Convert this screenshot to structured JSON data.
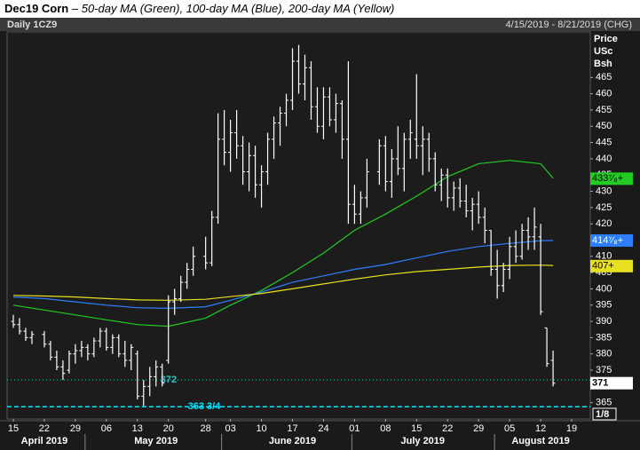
{
  "chart_data": {
    "type": "ohlc",
    "title": "Dec19 Corn",
    "subtitle": "– 50-day MA (Green), 100-day MA (Blue), 200-day MA (Yellow)",
    "symbol": "Daily 1CZ9",
    "date_range": "4/15/2019 - 8/21/2019 (CHG)",
    "unit_labels": [
      "Price",
      "USc",
      "Bsh"
    ],
    "fraction": "1/8",
    "bar_color": "#ffffff",
    "ylim": [
      360,
      479
    ],
    "yticks": [
      365,
      370,
      375,
      380,
      385,
      390,
      395,
      400,
      405,
      410,
      415,
      420,
      425,
      430,
      435,
      440,
      445,
      450,
      455,
      460,
      465
    ],
    "xlim": [
      "2019-04-12",
      "2019-08-22"
    ],
    "xticks": [
      {
        "value": "2019-04-15",
        "label": "15"
      },
      {
        "value": "2019-04-22",
        "label": "22"
      },
      {
        "value": "2019-04-29",
        "label": "29"
      },
      {
        "value": "2019-05-06",
        "label": "06"
      },
      {
        "value": "2019-05-13",
        "label": "13"
      },
      {
        "value": "2019-05-20",
        "label": "20"
      },
      {
        "value": "2019-05-28",
        "label": "28"
      },
      {
        "value": "2019-06-03",
        "label": "03"
      },
      {
        "value": "2019-06-10",
        "label": "10"
      },
      {
        "value": "2019-06-17",
        "label": "17"
      },
      {
        "value": "2019-06-24",
        "label": "24"
      },
      {
        "value": "2019-07-01",
        "label": "01"
      },
      {
        "value": "2019-07-08",
        "label": "08"
      },
      {
        "value": "2019-07-15",
        "label": "15"
      },
      {
        "value": "2019-07-22",
        "label": "22"
      },
      {
        "value": "2019-07-29",
        "label": "29"
      },
      {
        "value": "2019-08-05",
        "label": "05"
      },
      {
        "value": "2019-08-12",
        "label": "12"
      },
      {
        "value": "2019-08-19",
        "label": "19"
      }
    ],
    "month_ticks": [
      {
        "value": "2019-04-22",
        "label": "April 2019"
      },
      {
        "value": "2019-05-16",
        "label": "May 2019"
      },
      {
        "value": "2019-06-17",
        "label": "June 2019"
      },
      {
        "value": "2019-07-16",
        "label": "July 2019"
      },
      {
        "value": "2019-08-12",
        "label": "August 2019"
      }
    ],
    "bars": {
      "x": [
        "2019-04-15",
        "2019-04-16",
        "2019-04-17",
        "2019-04-18",
        "2019-04-22",
        "2019-04-23",
        "2019-04-24",
        "2019-04-25",
        "2019-04-26",
        "2019-04-29",
        "2019-04-30",
        "2019-05-01",
        "2019-05-02",
        "2019-05-03",
        "2019-05-06",
        "2019-05-07",
        "2019-05-08",
        "2019-05-09",
        "2019-05-10",
        "2019-05-13",
        "2019-05-14",
        "2019-05-15",
        "2019-05-16",
        "2019-05-17",
        "2019-05-20",
        "2019-05-21",
        "2019-05-22",
        "2019-05-23",
        "2019-05-24",
        "2019-05-28",
        "2019-05-29",
        "2019-05-30",
        "2019-05-31",
        "2019-06-03",
        "2019-06-04",
        "2019-06-05",
        "2019-06-06",
        "2019-06-07",
        "2019-06-10",
        "2019-06-11",
        "2019-06-12",
        "2019-06-13",
        "2019-06-14",
        "2019-06-17",
        "2019-06-18",
        "2019-06-19",
        "2019-06-20",
        "2019-06-21",
        "2019-06-24",
        "2019-06-25",
        "2019-06-26",
        "2019-06-27",
        "2019-06-28",
        "2019-07-01",
        "2019-07-02",
        "2019-07-03",
        "2019-07-05",
        "2019-07-08",
        "2019-07-09",
        "2019-07-10",
        "2019-07-11",
        "2019-07-12",
        "2019-07-15",
        "2019-07-16",
        "2019-07-17",
        "2019-07-18",
        "2019-07-19",
        "2019-07-22",
        "2019-07-23",
        "2019-07-24",
        "2019-07-25",
        "2019-07-26",
        "2019-07-29",
        "2019-07-30",
        "2019-07-31",
        "2019-08-01",
        "2019-08-02",
        "2019-08-05",
        "2019-08-06",
        "2019-08-07",
        "2019-08-08",
        "2019-08-09",
        "2019-08-12",
        "2019-08-13",
        "2019-08-14"
      ],
      "open": [
        390,
        389,
        387,
        385,
        386,
        383,
        379,
        376,
        375,
        380,
        381,
        382,
        380,
        384,
        387,
        382,
        385,
        380,
        378,
        380,
        367,
        370,
        373,
        376,
        378,
        396,
        397,
        402,
        406,
        410,
        408,
        422,
        446,
        442,
        448,
        444,
        436,
        441,
        432,
        436,
        446,
        451,
        454,
        458,
        470,
        463,
        468,
        456,
        450,
        459,
        452,
        457,
        446,
        426,
        423,
        428,
        436,
        444,
        433,
        440,
        437,
        446,
        446,
        444,
        446,
        440,
        432,
        435,
        428,
        431,
        427,
        424,
        426,
        422,
        418,
        406,
        401,
        406,
        413,
        410,
        418,
        416,
        416,
        388,
        378
      ],
      "high": [
        392,
        391,
        388,
        387,
        387,
        384,
        381,
        378,
        381,
        383,
        384,
        383,
        385,
        388,
        388,
        386,
        386,
        384,
        383,
        381,
        372,
        376,
        378,
        377,
        398,
        400,
        404,
        408,
        413,
        416,
        424,
        454,
        455,
        452,
        455,
        447,
        445,
        444,
        438,
        448,
        453,
        456,
        460,
        474,
        475,
        472,
        470,
        462,
        462,
        462,
        460,
        458,
        470,
        432,
        430,
        440,
        446,
        447,
        443,
        450,
        448,
        452,
        466,
        450,
        448,
        442,
        437,
        437,
        433,
        434,
        432,
        428,
        430,
        425,
        418,
        412,
        408,
        416,
        418,
        420,
        422,
        425,
        420,
        388,
        381
      ],
      "low": [
        388,
        386,
        384,
        383,
        382,
        378,
        375,
        372,
        374,
        377,
        379,
        378,
        379,
        382,
        381,
        380,
        379,
        376,
        375,
        366,
        364,
        367,
        370,
        370,
        377,
        392,
        396,
        400,
        404,
        406,
        407,
        420,
        438,
        436,
        440,
        432,
        430,
        428,
        425,
        432,
        440,
        444,
        450,
        455,
        460,
        458,
        452,
        448,
        446,
        450,
        448,
        440,
        420,
        420,
        420,
        425,
        432,
        430,
        428,
        435,
        430,
        440,
        440,
        435,
        436,
        430,
        427,
        425,
        424,
        425,
        422,
        418,
        420,
        414,
        404,
        397,
        399,
        403,
        408,
        409,
        412,
        412,
        392,
        376,
        370
      ],
      "close": [
        389,
        387,
        385,
        386,
        383,
        379,
        376,
        374,
        380,
        381,
        382,
        380,
        384,
        387,
        382,
        385,
        380,
        378,
        382,
        367,
        370,
        373,
        376,
        371,
        396,
        397,
        402,
        406,
        410,
        408,
        422,
        446,
        442,
        448,
        444,
        436,
        441,
        432,
        436,
        446,
        451,
        454,
        458,
        470,
        463,
        468,
        456,
        450,
        459,
        452,
        457,
        446,
        426,
        423,
        428,
        436,
        444,
        433,
        440,
        437,
        446,
        448,
        444,
        446,
        440,
        432,
        435,
        428,
        431,
        427,
        424,
        426,
        422,
        418,
        406,
        401,
        406,
        413,
        410,
        418,
        416,
        419,
        393,
        377,
        371
      ]
    },
    "moving_averages": [
      {
        "color": "#22cc22",
        "x": [
          "2019-04-15",
          "2019-04-22",
          "2019-04-29",
          "2019-05-06",
          "2019-05-13",
          "2019-05-20",
          "2019-05-28",
          "2019-06-03",
          "2019-06-10",
          "2019-06-17",
          "2019-06-24",
          "2019-07-01",
          "2019-07-08",
          "2019-07-15",
          "2019-07-22",
          "2019-07-29",
          "2019-08-05",
          "2019-08-12",
          "2019-08-14"
        ],
        "values": [
          395,
          393.5,
          392,
          390.5,
          389,
          388.5,
          391,
          395,
          399.5,
          405,
          411,
          418,
          423,
          428.5,
          434.5,
          438.5,
          439.5,
          438.5,
          434
        ],
        "end_label": {
          "value": 433.875,
          "label": "433⁷⁄₈+"
        },
        "label_color": "#000000"
      },
      {
        "color": "#2e7fff",
        "x": [
          "2019-04-15",
          "2019-04-22",
          "2019-04-29",
          "2019-05-06",
          "2019-05-13",
          "2019-05-20",
          "2019-05-28",
          "2019-06-03",
          "2019-06-10",
          "2019-06-17",
          "2019-06-24",
          "2019-07-01",
          "2019-07-08",
          "2019-07-15",
          "2019-07-22",
          "2019-07-29",
          "2019-08-05",
          "2019-08-12",
          "2019-08-14"
        ],
        "values": [
          397.5,
          397,
          396,
          395,
          394.2,
          394,
          394.5,
          396.5,
          399,
          402,
          404,
          406,
          407.5,
          409.5,
          411.5,
          413,
          414,
          414.8,
          414.9
        ],
        "end_label": {
          "value": 414.875,
          "label": "414⁷⁄₈+"
        },
        "label_color": "#ffffff"
      },
      {
        "color": "#e8e020",
        "x": [
          "2019-04-15",
          "2019-04-22",
          "2019-04-29",
          "2019-05-06",
          "2019-05-13",
          "2019-05-20",
          "2019-05-28",
          "2019-06-03",
          "2019-06-10",
          "2019-06-17",
          "2019-06-24",
          "2019-07-01",
          "2019-07-08",
          "2019-07-15",
          "2019-07-22",
          "2019-07-29",
          "2019-08-05",
          "2019-08-12",
          "2019-08-14"
        ],
        "values": [
          398,
          397.8,
          397.5,
          397,
          396.6,
          396.5,
          396.8,
          397.6,
          398.6,
          400,
          401.5,
          403,
          404.3,
          405.3,
          406,
          406.7,
          407.2,
          407.3,
          407.2
        ],
        "end_label": {
          "value": 407,
          "label": "407+"
        },
        "label_color": "#000000"
      }
    ],
    "last_price": 371,
    "reference_lines": [
      {
        "value": 372,
        "label": "372",
        "color": "#2ec4c4",
        "style": "dotted"
      },
      {
        "value": 363.75,
        "label": "363 3/4",
        "color": "#00e5ff",
        "style": "dashed"
      }
    ]
  }
}
